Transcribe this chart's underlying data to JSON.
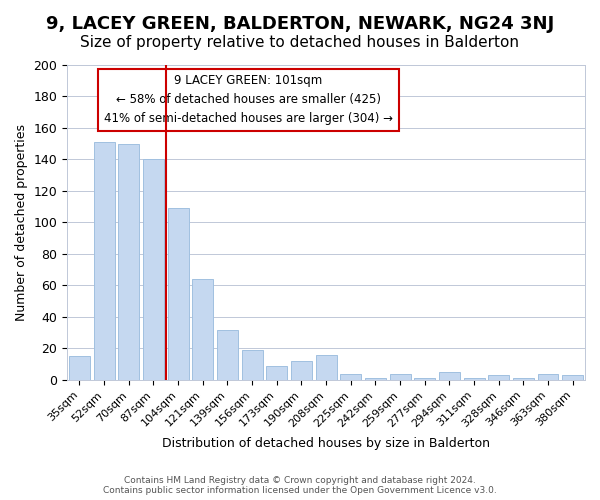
{
  "title": "9, LACEY GREEN, BALDERTON, NEWARK, NG24 3NJ",
  "subtitle": "Size of property relative to detached houses in Balderton",
  "xlabel": "Distribution of detached houses by size in Balderton",
  "ylabel": "Number of detached properties",
  "bar_color": "#c5d8f0",
  "bar_edge_color": "#a0c0e0",
  "categories": [
    "35sqm",
    "52sqm",
    "70sqm",
    "87sqm",
    "104sqm",
    "121sqm",
    "139sqm",
    "156sqm",
    "173sqm",
    "190sqm",
    "208sqm",
    "225sqm",
    "242sqm",
    "259sqm",
    "277sqm",
    "294sqm",
    "311sqm",
    "328sqm",
    "346sqm",
    "363sqm",
    "380sqm"
  ],
  "values": [
    15,
    151,
    150,
    140,
    109,
    64,
    32,
    19,
    9,
    12,
    16,
    4,
    1,
    4,
    1,
    5,
    1,
    3,
    1,
    4,
    3
  ],
  "ylim": [
    0,
    200
  ],
  "yticks": [
    0,
    20,
    40,
    60,
    80,
    100,
    120,
    140,
    160,
    180,
    200
  ],
  "annotation_box_text": "9 LACEY GREEN: 101sqm\n← 58% of detached houses are smaller (425)\n41% of semi-detached houses are larger (304) →",
  "annotation_box_edge_color": "#cc0000",
  "annotation_box_text_color": "#000000",
  "vline_x": 3.5,
  "vline_color": "#cc0000",
  "footer_line1": "Contains HM Land Registry data © Crown copyright and database right 2024.",
  "footer_line2": "Contains public sector information licensed under the Open Government Licence v3.0.",
  "background_color": "#ffffff",
  "grid_color": "#c0c8d8",
  "title_fontsize": 13,
  "subtitle_fontsize": 11
}
